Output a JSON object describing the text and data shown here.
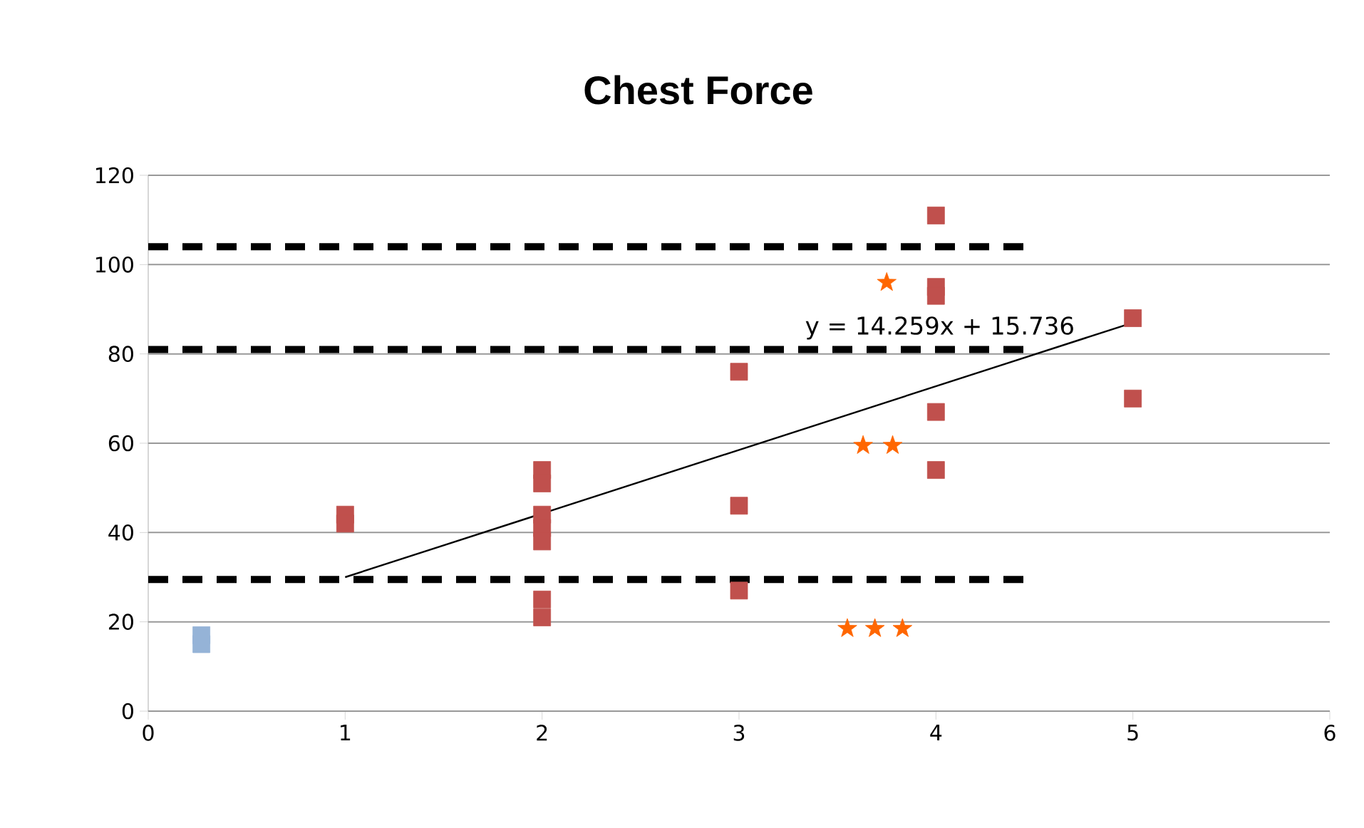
{
  "chart_data": {
    "type": "scatter",
    "title": "Chest Force",
    "xlim": [
      0,
      6
    ],
    "xticks": [
      0,
      1,
      2,
      3,
      4,
      5,
      6
    ],
    "ylim": [
      0,
      120
    ],
    "yticks": [
      0,
      20,
      40,
      60,
      80,
      100,
      120
    ],
    "grid": "y",
    "series": [
      {
        "type": "line",
        "color": "#000000",
        "line_style": "dashed",
        "marker": "none",
        "x": [
          0,
          4.45
        ],
        "values": [
          104,
          104
        ]
      },
      {
        "type": "line",
        "color": "#000000",
        "line_style": "dashed",
        "marker": "none",
        "x": [
          0,
          4.45
        ],
        "values": [
          81,
          81
        ]
      },
      {
        "type": "line",
        "color": "#000000",
        "line_style": "dashed",
        "marker": "none",
        "x": [
          0,
          4.45
        ],
        "values": [
          29.5,
          29.5
        ]
      },
      {
        "color": "#95b3d7",
        "marker": "square",
        "x": [
          0.27,
          0.27
        ],
        "values": [
          17,
          15
        ]
      },
      {
        "color": "#c0504d",
        "marker": "square",
        "x": [
          1,
          1,
          2,
          2,
          2,
          2,
          2,
          2,
          2,
          3,
          3,
          3,
          4,
          4,
          4,
          4,
          4,
          5,
          5
        ],
        "values": [
          44,
          42,
          54,
          51,
          44,
          41,
          38,
          25,
          21,
          76,
          46,
          27,
          111,
          95,
          93,
          67,
          54,
          88,
          70
        ]
      },
      {
        "color": "#ff6600",
        "marker": "star",
        "x": [
          3.75,
          3.63,
          3.78,
          3.55,
          3.69,
          3.83
        ],
        "values": [
          96,
          59.5,
          59.5,
          18.5,
          18.5,
          18.5
        ]
      },
      {
        "type": "line",
        "color": "#000000",
        "line_style": "solid",
        "marker": "none",
        "x": [
          1,
          5
        ],
        "values": [
          30,
          87
        ]
      }
    ],
    "annotations": [
      "y = 14.259x + 15.736"
    ]
  }
}
